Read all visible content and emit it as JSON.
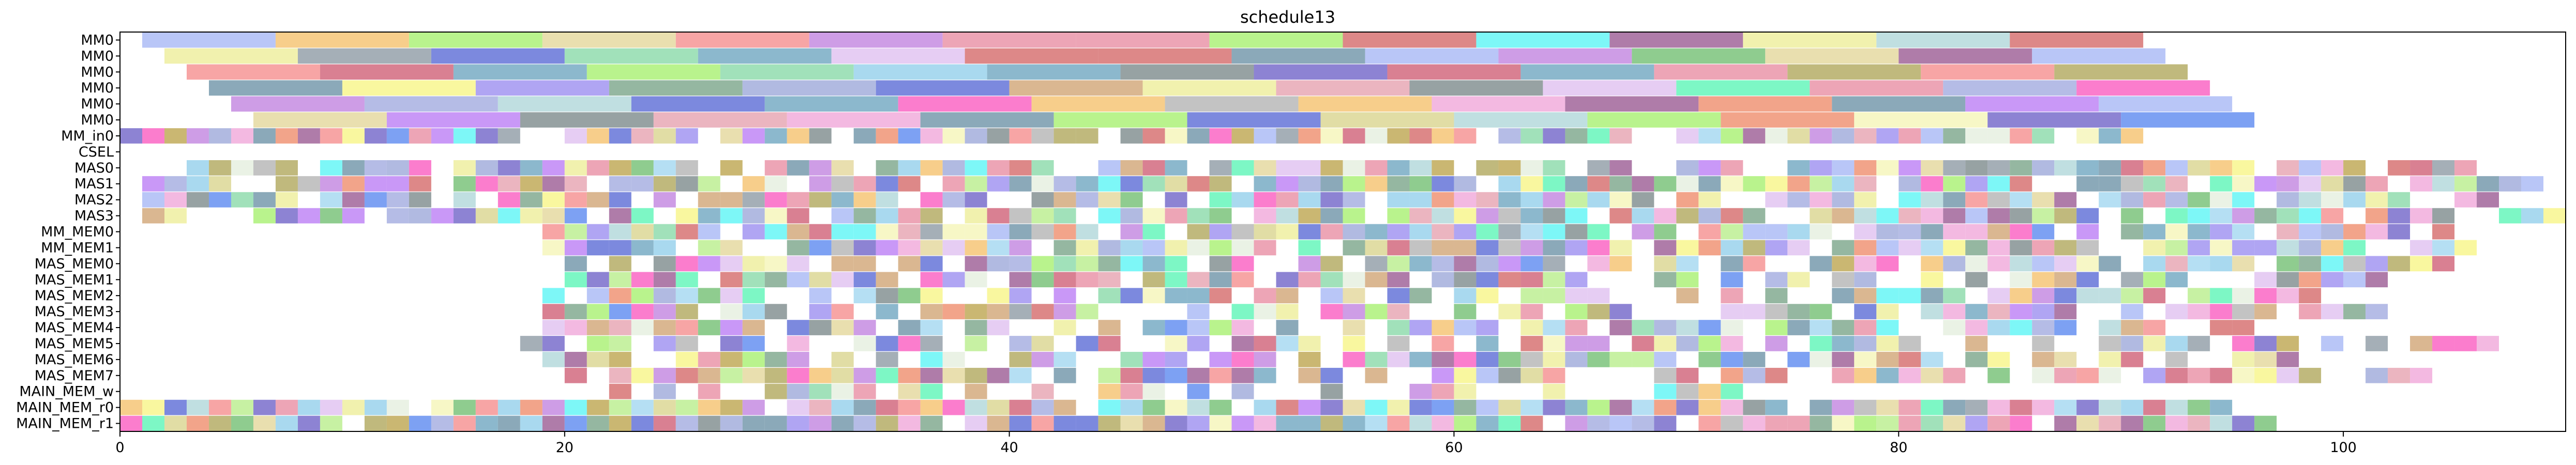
{
  "chart_data": {
    "type": "gantt",
    "title": "schedule13",
    "xlim": [
      0,
      110
    ],
    "x_ticks": [
      0,
      20,
      40,
      60,
      80,
      100
    ],
    "grid": false,
    "rows": [
      "MM0",
      "MM0",
      "MM0",
      "MM0",
      "MM0",
      "MM0",
      "MM_in0",
      "CSEL",
      "MAS0",
      "MAS1",
      "MAS2",
      "MAS3",
      "MM_MEM0",
      "MM_MEM1",
      "MAS_MEM0",
      "MAS_MEM1",
      "MAS_MEM2",
      "MAS_MEM3",
      "MAS_MEM4",
      "MAS_MEM5",
      "MAS_MEM6",
      "MAS_MEM7",
      "MAIN_MEM_w",
      "MAIN_MEM_r0",
      "MAIN_MEM_r1"
    ],
    "row_specs": [
      {
        "kind": "blocks",
        "start": 1.0,
        "width": 6.0,
        "count": 15,
        "step": 6.0
      },
      {
        "kind": "blocks",
        "start": 2.0,
        "width": 6.0,
        "count": 15,
        "step": 6.0
      },
      {
        "kind": "blocks",
        "start": 3.0,
        "width": 6.0,
        "count": 15,
        "step": 6.0
      },
      {
        "kind": "blocks",
        "start": 4.0,
        "width": 6.0,
        "count": 15,
        "step": 6.0
      },
      {
        "kind": "blocks",
        "start": 5.0,
        "width": 6.0,
        "count": 15,
        "step": 6.0
      },
      {
        "kind": "blocks",
        "start": 6.0,
        "width": 6.0,
        "count": 15,
        "step": 6.0
      },
      {
        "kind": "cells",
        "start": 0,
        "end": 91,
        "density": 0.93
      },
      {
        "kind": "empty"
      },
      {
        "kind": "cells",
        "start": 1,
        "end": 106,
        "density": 0.82
      },
      {
        "kind": "cells",
        "start": 1,
        "end": 109,
        "density": 0.82
      },
      {
        "kind": "cells",
        "start": 1,
        "end": 108,
        "density": 0.8
      },
      {
        "kind": "cells",
        "start": 1,
        "end": 110,
        "density": 0.8
      },
      {
        "kind": "cells",
        "start": 19,
        "end": 105,
        "density": 0.88
      },
      {
        "kind": "cells",
        "start": 19,
        "end": 106,
        "density": 0.86
      },
      {
        "kind": "cells",
        "start": 20,
        "end": 105,
        "density": 0.78
      },
      {
        "kind": "cells",
        "start": 20,
        "end": 104,
        "density": 0.74
      },
      {
        "kind": "cells",
        "start": 18,
        "end": 99,
        "density": 0.74
      },
      {
        "kind": "cells",
        "start": 19,
        "end": 102,
        "density": 0.72
      },
      {
        "kind": "cells",
        "start": 19,
        "end": 96,
        "density": 0.7
      },
      {
        "kind": "cells",
        "start": 18,
        "end": 107,
        "density": 0.72
      },
      {
        "kind": "cells",
        "start": 19,
        "end": 98,
        "density": 0.72
      },
      {
        "kind": "cells",
        "start": 20,
        "end": 104,
        "density": 0.76
      },
      {
        "kind": "cells",
        "start": 19,
        "end": 73,
        "density": 0.42
      },
      {
        "kind": "cells",
        "start": 0,
        "end": 95,
        "density": 0.98
      },
      {
        "kind": "cells",
        "start": 0,
        "end": 97,
        "density": 0.98
      }
    ],
    "palette": [
      "#e3d79b",
      "#b9ee8c",
      "#b0a85c",
      "#5cf5b6",
      "#5b6bd6",
      "#d06077",
      "#e5efde",
      "#f58e8e",
      "#9c8ef0",
      "#9b5b93",
      "#a3abe0",
      "#eded9a",
      "#94cfeb",
      "#7ba58a",
      "#7064c8",
      "#6fa6c0",
      "#f7f587",
      "#d9d58e",
      "#9ea9d9",
      "#b0d7da",
      "#ef8d6d",
      "#f0a7d9",
      "#7d8b8c",
      "#73bf73",
      "#fa5cc1",
      "#89d9a9",
      "#e88ea4",
      "#a3d7f0",
      "#d1a575",
      "#5cf5f5",
      "#c285e0",
      "#f5c26e",
      "#5c8af0",
      "#a7b8f5",
      "#bc7ef5",
      "#8e9ba5",
      "#d46a6a",
      "#bda54f",
      "#e6a3b0",
      "#a8f070",
      "#b4b4b4",
      "#f5f5b8",
      "#6e94a8",
      "#e0c0f0"
    ],
    "bar_alpha": 0.8
  }
}
